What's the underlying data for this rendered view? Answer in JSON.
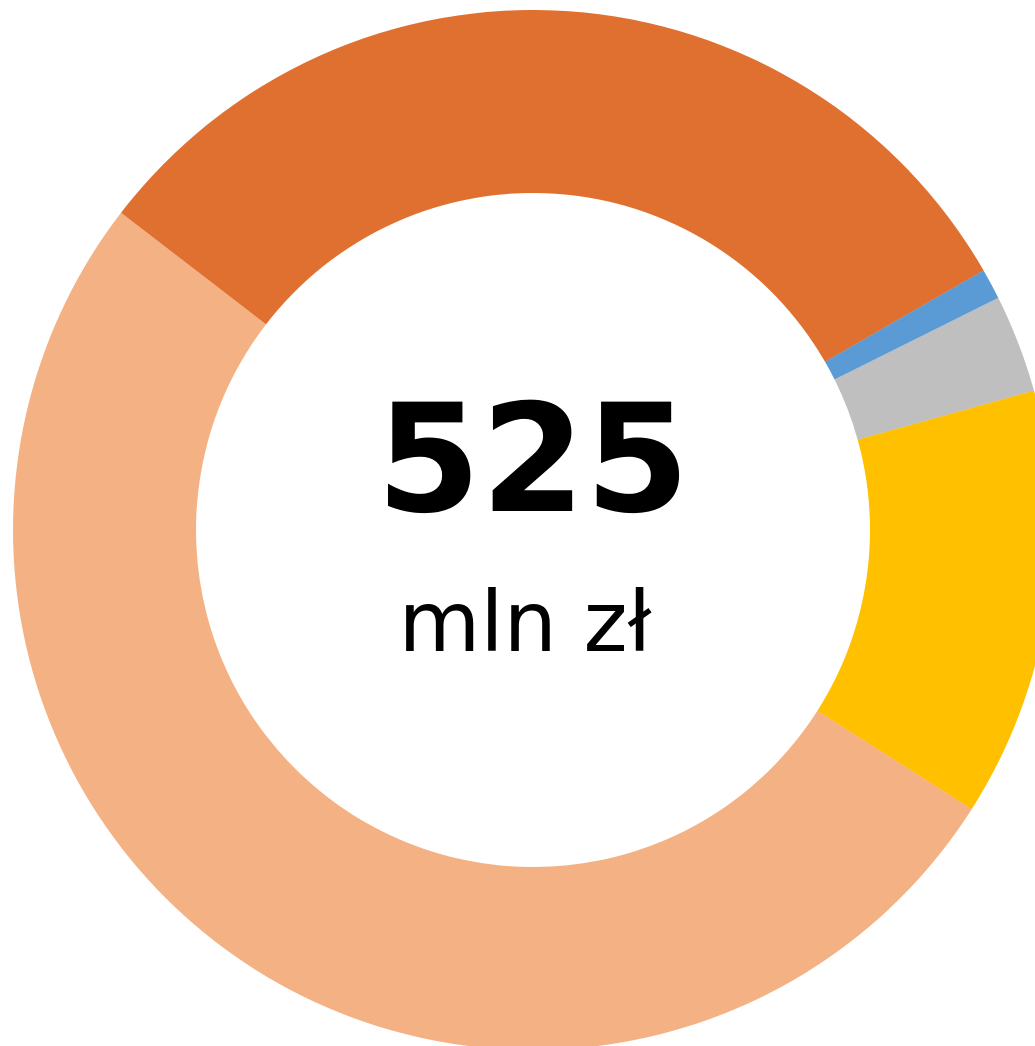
{
  "chart_data": {
    "type": "donut",
    "values": [
      164,
      5,
      16,
      70,
      270
    ],
    "colors": [
      "#e07030",
      "#5b9bd5",
      "#bfbfbf",
      "#ffc000",
      "#f4b183"
    ],
    "center_value": 525,
    "center_unit": "mln zł"
  }
}
